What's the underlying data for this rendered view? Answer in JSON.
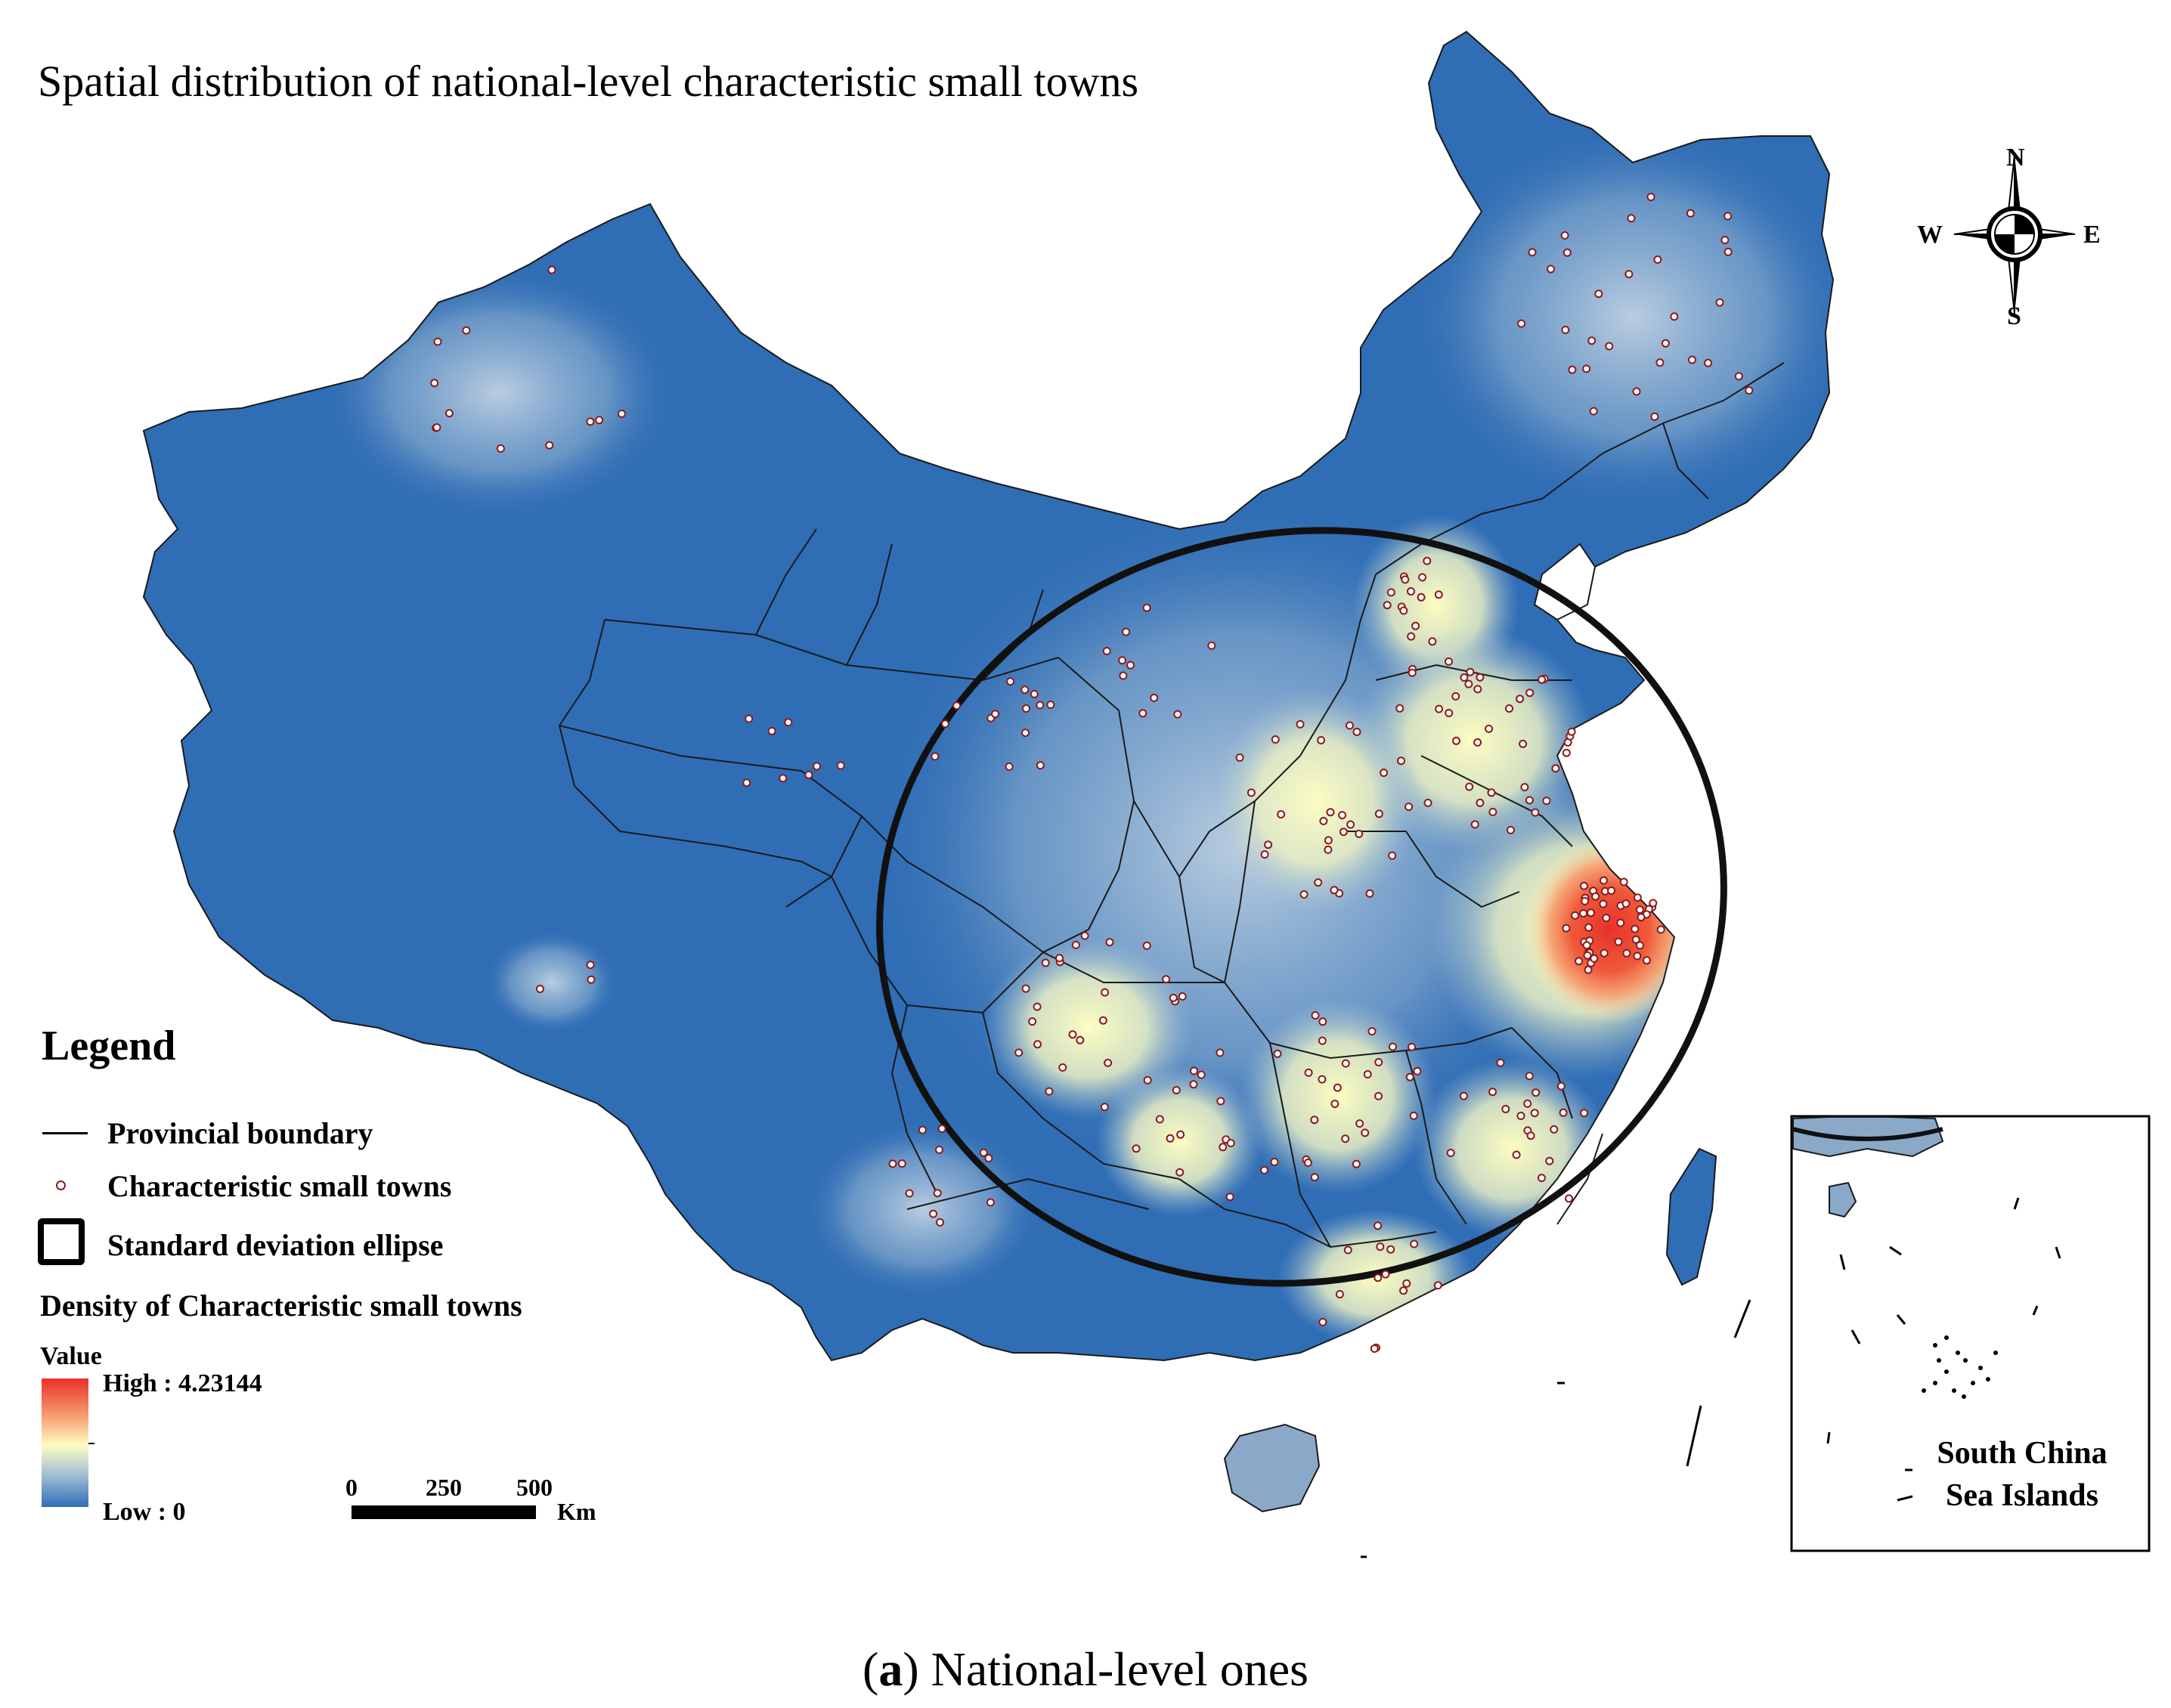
{
  "title": "Spatial distribution of national-level characteristic small towns",
  "compass": {
    "north": "N",
    "south": "S",
    "east": "E",
    "west": "W"
  },
  "legend": {
    "heading": "Legend",
    "boundary_label": "Provincial boundary",
    "towns_label": "Characteristic small towns",
    "ellipse_label": "Standard deviation ellipse",
    "density_title": "Density of Characteristic small towns",
    "value_label": "Value",
    "high_label": "High : 4.23144",
    "low_label": "Low : 0",
    "high_value": 4.23144,
    "low_value": 0,
    "colors": {
      "high": "#e8312a",
      "mid": "#fdfdc2",
      "low": "#2f6db5"
    }
  },
  "scale_bar": {
    "ticks": [
      "0",
      "250",
      "500"
    ],
    "unit": "Km"
  },
  "inset": {
    "label_line1": "South China",
    "label_line2": "Sea Islands"
  },
  "caption": {
    "letter": "a",
    "prefix": "(",
    "suffix": ") National-level ones"
  },
  "colors": {
    "base": "#2f6db5",
    "boundary": "#1a1a1a",
    "town_outline": "#8b1a1a"
  }
}
